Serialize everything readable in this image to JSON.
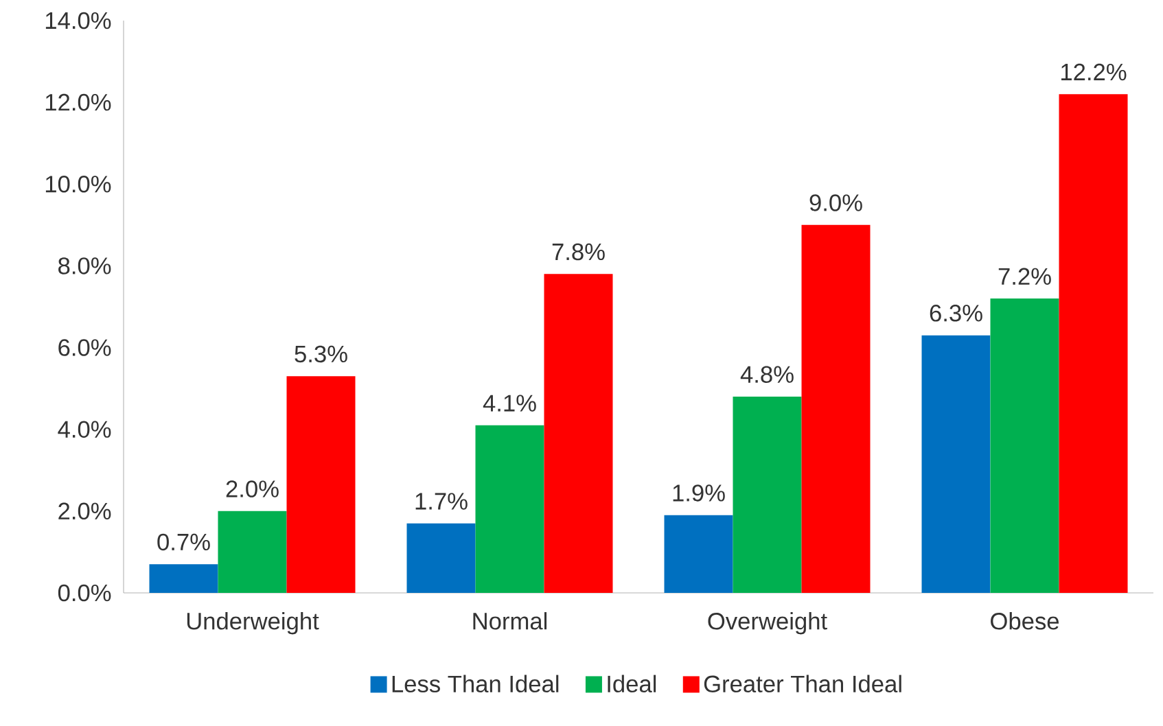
{
  "chart_data": {
    "type": "bar",
    "categories": [
      "Underweight",
      "Normal",
      "Overweight",
      "Obese"
    ],
    "series": [
      {
        "name": "Less Than Ideal",
        "color": "#0070c0",
        "values": [
          0.7,
          1.7,
          1.9,
          6.3
        ],
        "value_labels": [
          "0.7%",
          "1.7%",
          "1.9%",
          "6.3%"
        ]
      },
      {
        "name": "Ideal",
        "color": "#00b050",
        "values": [
          2.0,
          4.1,
          4.8,
          7.2
        ],
        "value_labels": [
          "2.0%",
          "4.1%",
          "4.8%",
          "7.2%"
        ]
      },
      {
        "name": "Greater Than Ideal",
        "color": "#ff0000",
        "values": [
          5.3,
          7.8,
          9.0,
          12.2
        ],
        "value_labels": [
          "5.3%",
          "7.8%",
          "9.0%",
          "12.2%"
        ]
      }
    ],
    "ylim": [
      0,
      14
    ],
    "yticks": [
      {
        "value": 0,
        "label": "0.0%"
      },
      {
        "value": 2,
        "label": "2.0%"
      },
      {
        "value": 4,
        "label": "4.0%"
      },
      {
        "value": 6,
        "label": "6.0%"
      },
      {
        "value": 8,
        "label": "8.0%"
      },
      {
        "value": 10,
        "label": "10.0%"
      },
      {
        "value": 12,
        "label": "12.0%"
      },
      {
        "value": 14,
        "label": "14.0%"
      }
    ],
    "grid": false,
    "legend": "bottom"
  }
}
